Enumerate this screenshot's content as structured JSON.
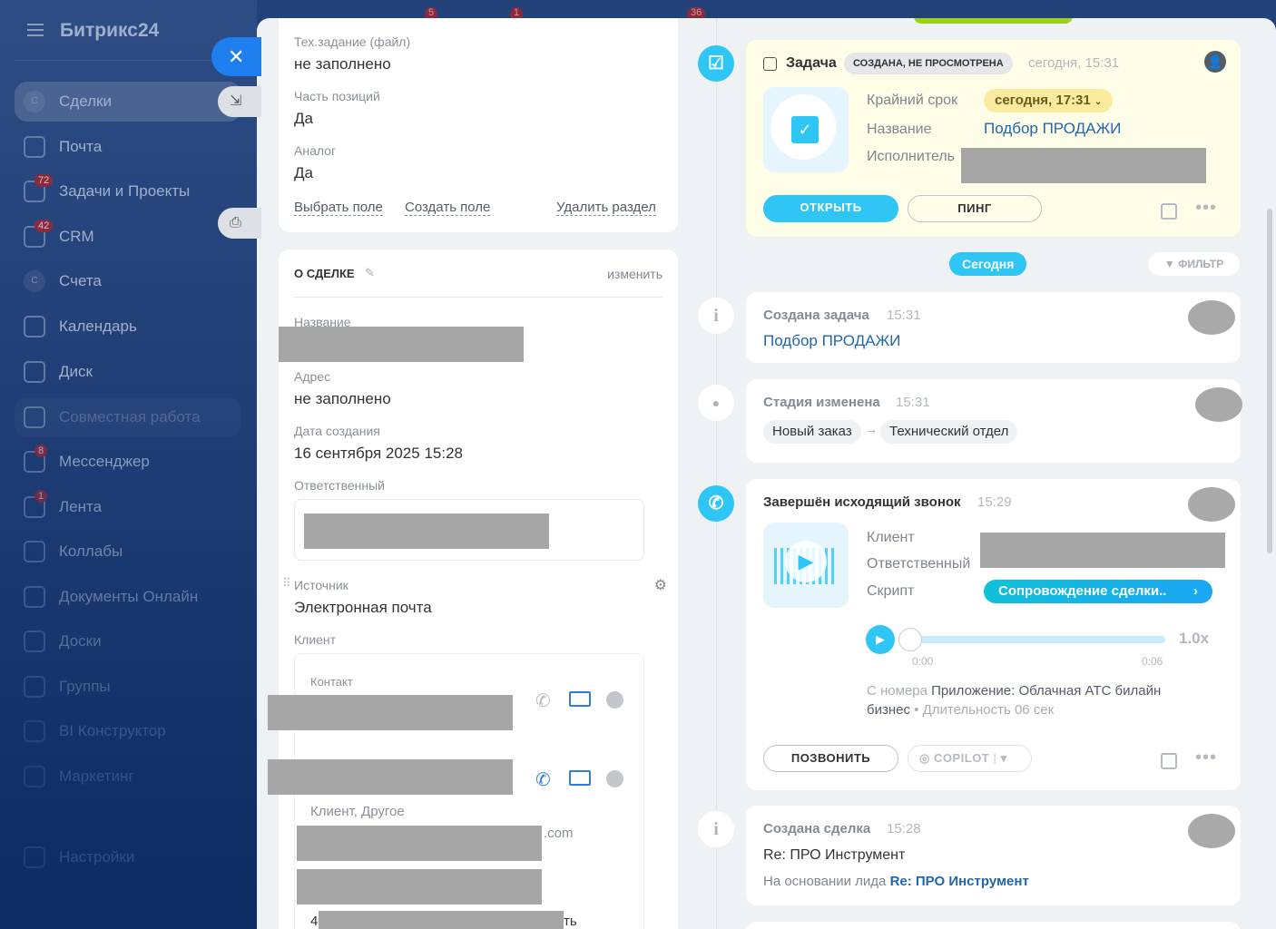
{
  "sidebar": {
    "logo": "Битрикс24",
    "items": [
      {
        "label": "Сделки",
        "icon": "deals-icon",
        "active": true
      },
      {
        "label": "Почта",
        "icon": "mail-icon"
      },
      {
        "label": "Задачи и Проекты",
        "icon": "tasks-icon",
        "badge": "72"
      },
      {
        "label": "CRM",
        "icon": "crm-icon",
        "badge": "42"
      },
      {
        "label": "Счета",
        "icon": "invoices-icon"
      },
      {
        "label": "Календарь",
        "icon": "calendar-icon"
      },
      {
        "label": "Диск",
        "icon": "disk-icon"
      },
      {
        "label": "Совместная работа",
        "icon": "collab-icon",
        "group": true
      },
      {
        "label": "Мессенджер",
        "icon": "messenger-icon",
        "badge": "8"
      },
      {
        "label": "Лента",
        "icon": "feed-icon",
        "badge": "1"
      },
      {
        "label": "Коллабы",
        "icon": "collabs-icon"
      },
      {
        "label": "Документы Онлайн",
        "icon": "documents-icon"
      },
      {
        "label": "Доски",
        "icon": "boards-icon"
      },
      {
        "label": "Группы",
        "icon": "groups-icon"
      },
      {
        "label": "BI Конструктор",
        "icon": "bi-icon"
      },
      {
        "label": "Маркетинг",
        "icon": "marketing-icon"
      },
      {
        "label": "Настройки",
        "icon": "settings-icon"
      }
    ]
  },
  "top_badges": [
    "5",
    "1",
    "36"
  ],
  "fields1": {
    "f1_label": "Тех.задание (файл)",
    "f1_value": "не заполнено",
    "f2_label": "Часть позиций",
    "f2_value": "Да",
    "f3_label": "Аналог",
    "f3_value": "Да",
    "select": "Выбрать поле",
    "create": "Создать поле",
    "delete": "Удалить раздел"
  },
  "about": {
    "title": "О СДЕЛКЕ",
    "edit": "изменить",
    "name_label": "Название",
    "address_label": "Адрес",
    "address_value": "не заполнено",
    "created_label": "Дата создания",
    "created_value": "16 сентября 2025 15:28",
    "responsible_label": "Ответственный",
    "source_label": "Источник",
    "source_value": "Электронная почта",
    "client_label": "Клиент",
    "contact_label": "Контакт",
    "client_other": "Клиент, Другое",
    "email_suffix": ".com",
    "tail1": "4",
    "tail2": "ть"
  },
  "task": {
    "title": "Задача",
    "status": "СОЗДАНА, НЕ ПРОСМОТРЕНА",
    "time": "сегодня, 15:31",
    "deadline_label": "Крайний срок",
    "deadline": "сегодня, 17:31",
    "name_label": "Название",
    "name": "Подбор ПРОДАЖИ",
    "executor_label": "Исполнитель",
    "open": "ОТКРЫТЬ",
    "ping": "ПИНГ"
  },
  "today": "Сегодня",
  "filter": "ФИЛЬТР",
  "created_task": {
    "title": "Создана задача",
    "time": "15:31",
    "link": "Подбор ПРОДАЖИ"
  },
  "stage": {
    "title": "Стадия изменена",
    "time": "15:31",
    "from": "Новый заказ",
    "to": "Технический отдел"
  },
  "call": {
    "title": "Завершён исходящий звонок",
    "time": "15:29",
    "client_label": "Клиент",
    "resp_label": "Ответственный",
    "script_label": "Скрипт",
    "script": "Сопровождение сделки..",
    "start": "0:00",
    "end": "0:06",
    "speed": "1.0x",
    "progress": 0,
    "from_label": "С номера",
    "from_value": "Приложение: Облачная АТС билайн бизнес",
    "duration": "Длительность 06 сек",
    "call_btn": "ПОЗВОНИТЬ",
    "copilot": "COPILOT"
  },
  "created_deal": {
    "title": "Создана сделка",
    "time": "15:28",
    "name": "Re: ПРО Инструмент",
    "basis_label": "На основании лида",
    "basis": "Re: ПРО Инструмент"
  },
  "colors": {
    "accent": "#2fc6f6",
    "link": "#2066b0",
    "sidebar": "#24427a"
  }
}
